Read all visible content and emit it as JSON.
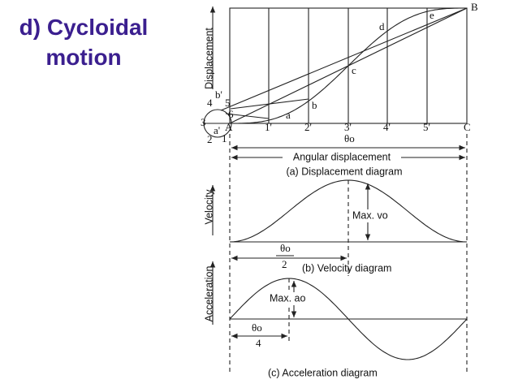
{
  "title": [
    "d) Cycloidal",
    "motion"
  ],
  "displacement": {
    "axis_label": "Displacement",
    "curve_points": [
      "a",
      "b",
      "c",
      "d",
      "e",
      "B"
    ],
    "circle_points": [
      "1",
      "2",
      "a'",
      "3",
      "4",
      "b'",
      "5",
      "6"
    ],
    "origin": "A",
    "end": "C",
    "divisions": [
      "1'",
      "2'",
      "3'",
      "4'",
      "5'"
    ],
    "theta": "θo",
    "x_label": "Angular displacement",
    "caption": "(a) Displacement diagram"
  },
  "velocity": {
    "axis_label": "Velocity",
    "max_label": "Max. vo",
    "fraction": {
      "numerator": "θo",
      "denominator": "2"
    },
    "caption": "(b) Velocity diagram"
  },
  "acceleration": {
    "axis_label": "Acceleration",
    "max_label": "Max. ao",
    "fraction": {
      "numerator": "θo",
      "denominator": "4"
    },
    "caption": "(c) Acceleration diagram"
  }
}
